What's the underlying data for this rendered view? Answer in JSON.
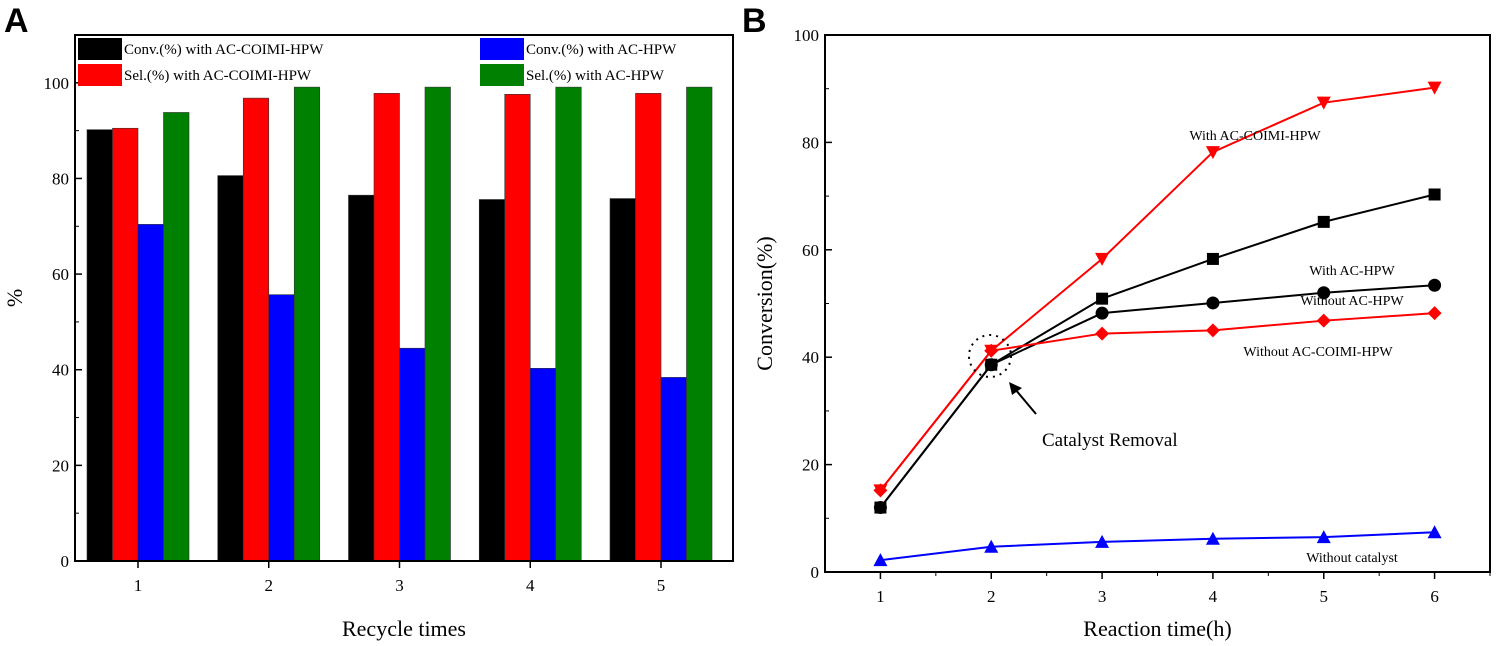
{
  "chart_data": [
    {
      "panel": "A",
      "type": "bar",
      "xlabel": "Recycle times",
      "ylabel": "%",
      "categories": [
        "1",
        "2",
        "3",
        "4",
        "5"
      ],
      "ylim": [
        0,
        110
      ],
      "yticks": [
        0,
        20,
        40,
        60,
        80,
        100
      ],
      "legend_placement": "top",
      "series": [
        {
          "name": "Conv.(%) with AC-COIMI-HPW",
          "color": "#000000",
          "values": [
            90.2,
            80.6,
            76.5,
            75.6,
            75.8
          ]
        },
        {
          "name": "Sel.(%) with AC-COIMI-HPW",
          "color": "#ff0000",
          "values": [
            90.5,
            96.8,
            97.8,
            97.6,
            97.8
          ]
        },
        {
          "name": "Conv.(%) with AC-HPW",
          "color": "#0000ff",
          "values": [
            70.4,
            55.7,
            44.5,
            40.3,
            38.4
          ]
        },
        {
          "name": "Sel.(%) with AC-HPW",
          "color": "#008000",
          "values": [
            93.8,
            99.1,
            99.1,
            99.1,
            99.1
          ]
        }
      ]
    },
    {
      "panel": "B",
      "type": "line",
      "xlabel": "Reaction time(h)",
      "ylabel": "Conversion(%)",
      "x": [
        1,
        2,
        3,
        4,
        5,
        6
      ],
      "xlim": [
        0.5,
        6.5
      ],
      "ylim": [
        0,
        100
      ],
      "yticks": [
        0,
        20,
        40,
        60,
        80,
        100
      ],
      "series": [
        {
          "name": "With AC-COIMI-HPW",
          "color": "#ff0000",
          "marker": "triangle-down",
          "values": [
            15.2,
            41.2,
            58.3,
            78.2,
            87.4,
            90.2
          ]
        },
        {
          "name": "With AC-HPW",
          "color": "#000000",
          "marker": "square",
          "values": [
            12.0,
            38.6,
            50.9,
            58.3,
            65.2,
            70.3
          ]
        },
        {
          "name": "Without AC-HPW",
          "color": "#000000",
          "marker": "circle",
          "values": [
            12.0,
            38.6,
            48.2,
            50.1,
            52.0,
            53.4
          ]
        },
        {
          "name": "Without AC-COIMI-HPW",
          "color": "#ff0000",
          "marker": "diamond",
          "values": [
            15.2,
            41.2,
            44.4,
            45.0,
            46.8,
            48.2
          ]
        },
        {
          "name": "Without catalyst",
          "color": "#0000ff",
          "marker": "triangle-up",
          "values": [
            2.2,
            4.7,
            5.6,
            6.2,
            6.5,
            7.4
          ]
        }
      ],
      "annotation": "Catalyst Removal"
    }
  ]
}
